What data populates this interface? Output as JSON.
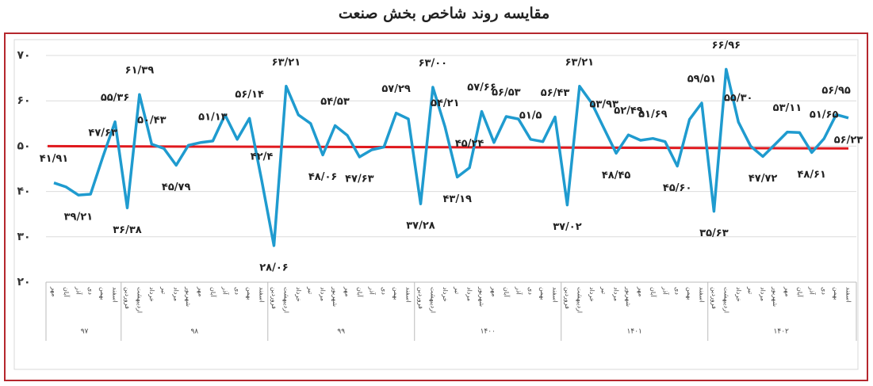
{
  "chart_data": {
    "type": "line",
    "title": "مقایسه روند شاخص بخش صنعت",
    "year_groups": [
      {
        "name": "۹۷",
        "months": [
          "مهر",
          "آبان",
          "آذر",
          "دی",
          "بهمن",
          "اسفند"
        ]
      },
      {
        "name": "۹۸",
        "months": [
          "فروردین",
          "اردیبهشت",
          "خرداد",
          "تیر",
          "مرداد",
          "شهریور",
          "مهر",
          "آبان",
          "آذر",
          "دی",
          "بهمن",
          "اسفند"
        ]
      },
      {
        "name": "۹۹",
        "months": [
          "فروردین",
          "اردیبهشت",
          "خرداد",
          "تیر",
          "مرداد",
          "شهریور",
          "مهر",
          "آبان",
          "آذر",
          "دی",
          "بهمن",
          "اسفند"
        ]
      },
      {
        "name": "۱۴۰۰",
        "months": [
          "فروردین",
          "اردیبهشت",
          "خرداد",
          "تیر",
          "مرداد",
          "شهریور",
          "مهر",
          "آبان",
          "آذر",
          "دی",
          "بهمن",
          "اسفند"
        ]
      },
      {
        "name": "۱۴۰۱",
        "months": [
          "فروردین",
          "اردیبهشت",
          "خرداد",
          "تیر",
          "مرداد",
          "شهریور",
          "مهر",
          "آبان",
          "آذر",
          "دی",
          "بهمن",
          "اسفند"
        ]
      },
      {
        "name": "۱۴۰۲",
        "months": [
          "فروردین",
          "اردیبهشت",
          "خرداد",
          "تیر",
          "مرداد",
          "شهریور",
          "مهر",
          "آبان",
          "آذر",
          "دی",
          "بهمن",
          "اسفند"
        ]
      }
    ],
    "color": "#1f9bcf",
    "values": [
      41.91,
      41.0,
      39.21,
      39.4,
      47.63,
      55.36,
      36.38,
      61.39,
      50.43,
      49.5,
      45.79,
      50.2,
      50.8,
      51.13,
      56.9,
      51.5,
      56.14,
      42.4,
      28.06,
      63.21,
      56.9,
      55.0,
      48.06,
      54.53,
      52.4,
      47.63,
      49.2,
      49.8,
      57.29,
      56.0,
      37.28,
      63.0,
      54.21,
      43.19,
      45.24,
      57.66,
      50.8,
      56.53,
      56.0,
      51.5,
      51.0,
      56.43,
      37.02,
      63.21,
      59.5,
      53.93,
      48.45,
      52.49,
      51.3,
      51.69,
      51.0,
      45.6,
      55.9,
      59.51,
      35.63,
      66.96,
      55.3,
      50.0,
      47.72,
      50.4,
      53.11,
      53.0,
      48.61,
      51.65,
      56.95,
      56.23
    ],
    "value_labels": [
      "۴۱/۹۱",
      null,
      "۳۹/۲۱",
      null,
      "۴۷/۶۳",
      "۵۵/۳۶",
      "۳۶/۳۸",
      "۶۱/۳۹",
      "۵۰/۴۳",
      null,
      "۴۵/۷۹",
      null,
      null,
      "۵۱/۱۳",
      null,
      null,
      "۵۶/۱۴",
      "۴۲/۴",
      "۲۸/۰۶",
      "۶۳/۲۱",
      null,
      null,
      "۴۸/۰۶",
      "۵۴/۵۳",
      null,
      "۴۷/۶۳",
      null,
      null,
      "۵۷/۲۹",
      null,
      "۳۷/۲۸",
      "۶۳/۰۰",
      "۵۴/۲۱",
      "۴۳/۱۹",
      "۴۵/۲۴",
      "۵۷/۶۶",
      null,
      "۵۶/۵۳",
      null,
      "۵۱/۵",
      null,
      "۵۶/۴۳",
      "۳۷/۰۲",
      "۶۳/۲۱",
      null,
      "۵۳/۹۳",
      "۴۸/۴۵",
      "۵۲/۴۹",
      null,
      "۵۱/۶۹",
      null,
      "۴۵/۶۰",
      null,
      "۵۹/۵۱",
      "۳۵/۶۳",
      "۶۶/۹۶",
      "۵۵/۳۰",
      null,
      "۴۷/۷۲",
      null,
      "۵۳/۱۱",
      null,
      "۴۸/۶۱",
      "۵۱/۶۵",
      "۵۶/۹۵",
      "۵۶/۲۳"
    ],
    "reference_line": {
      "color": "#e0191e",
      "values": [
        50.0,
        49.5
      ]
    },
    "ylim": [
      20,
      70
    ],
    "yticks": [
      {
        "value": 20,
        "label": "۲۰"
      },
      {
        "value": 30,
        "label": "۳۰"
      },
      {
        "value": 40,
        "label": "۴۰"
      },
      {
        "value": 50,
        "label": "۵۰"
      },
      {
        "value": 60,
        "label": "۶۰"
      },
      {
        "value": 70,
        "label": "۷۰"
      }
    ],
    "grid": true
  }
}
